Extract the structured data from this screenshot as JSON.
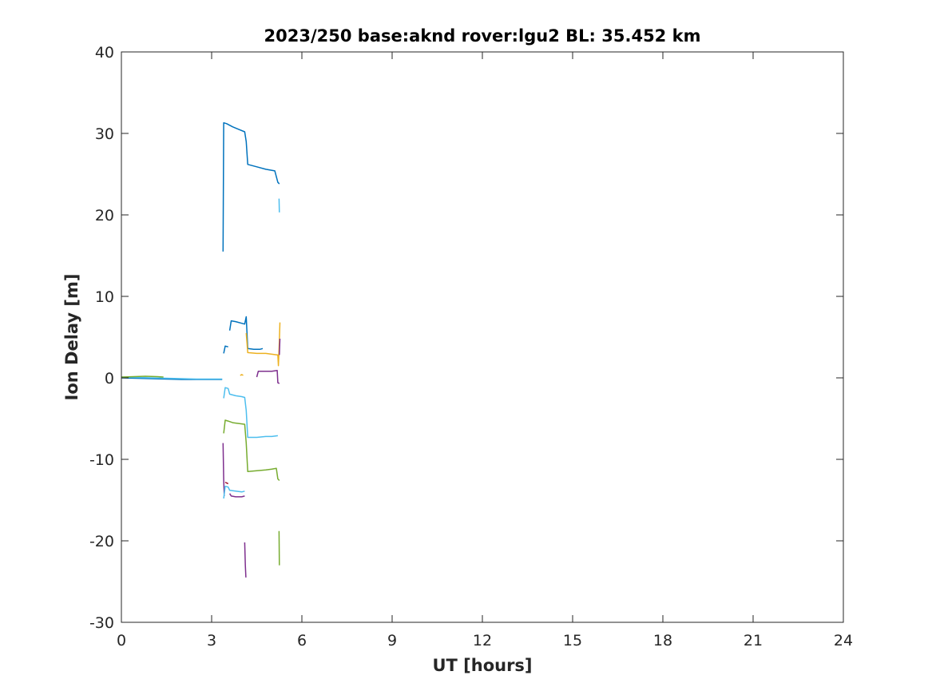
{
  "chart_data": {
    "type": "line",
    "title": "2023/250 base:aknd rover:lgu2 BL: 35.452 km",
    "xlabel": "UT [hours]",
    "ylabel": "Ion Delay [m]",
    "xlim": [
      0,
      24
    ],
    "ylim": [
      -30,
      40
    ],
    "xticks": [
      0,
      3,
      6,
      9,
      12,
      15,
      18,
      21,
      24
    ],
    "yticks": [
      -30,
      -20,
      -10,
      0,
      10,
      20,
      30,
      40
    ],
    "xtick_labels": [
      "0",
      "3",
      "6",
      "9",
      "12",
      "15",
      "18",
      "21",
      "24"
    ],
    "ytick_labels": [
      "-30",
      "-20",
      "-10",
      "0",
      "10",
      "20",
      "30",
      "40"
    ],
    "grid": false,
    "legend": "none",
    "colors": [
      "#0072BD",
      "#D95319",
      "#EDB120",
      "#7E2F8E",
      "#77AC30",
      "#4DBEEE",
      "#A2142F"
    ],
    "series": [
      {
        "color": "#0072BD",
        "x": [
          0.0,
          0.5,
          1.0,
          1.5,
          2.0,
          2.5,
          3.0,
          3.35
        ],
        "y": [
          0.0,
          -0.05,
          -0.1,
          -0.15,
          -0.2,
          -0.2,
          -0.2,
          -0.2
        ]
      },
      {
        "color": "#4DBEEE",
        "x": [
          0.0,
          0.5,
          1.0,
          1.5,
          2.0,
          2.5,
          3.0,
          3.35
        ],
        "y": [
          0.1,
          0.05,
          0.0,
          -0.05,
          -0.1,
          -0.15,
          -0.15,
          -0.15
        ]
      },
      {
        "color": "#77AC30",
        "x": [
          0.0,
          0.4,
          0.8,
          1.2,
          1.4
        ],
        "y": [
          0.1,
          0.15,
          0.2,
          0.15,
          0.1
        ]
      },
      {
        "color": "#0072BD",
        "x": [
          3.38,
          3.4,
          3.5,
          3.7,
          3.9,
          4.1,
          4.15,
          4.2,
          4.5,
          4.8,
          5.1,
          5.2,
          5.25
        ],
        "y": [
          15.5,
          31.3,
          31.2,
          30.8,
          30.5,
          30.2,
          29.0,
          26.2,
          25.9,
          25.6,
          25.4,
          24.0,
          23.8
        ]
      },
      {
        "color": "#4DBEEE",
        "x": [
          5.24,
          5.25
        ],
        "y": [
          22.0,
          20.3
        ]
      },
      {
        "color": "#0072BD",
        "x": [
          3.4,
          3.45,
          3.55
        ],
        "y": [
          3.0,
          3.9,
          3.8
        ]
      },
      {
        "color": "#0072BD",
        "x": [
          3.6,
          3.65,
          3.8,
          4.0,
          4.1,
          4.15,
          4.2,
          4.4,
          4.6,
          4.7
        ],
        "y": [
          5.8,
          7.0,
          6.9,
          6.7,
          6.6,
          7.5,
          3.6,
          3.5,
          3.5,
          3.6
        ]
      },
      {
        "color": "#EDB120",
        "x": [
          4.15,
          4.2,
          4.5,
          4.8,
          5.0,
          5.2,
          5.22,
          5.25,
          5.27
        ],
        "y": [
          5.5,
          3.1,
          3.0,
          3.0,
          2.9,
          2.8,
          1.5,
          4.5,
          6.8
        ]
      },
      {
        "color": "#EDB120",
        "x": [
          3.95,
          4.0,
          4.05
        ],
        "y": [
          0.3,
          0.4,
          0.3
        ]
      },
      {
        "color": "#7E2F8E",
        "x": [
          4.5,
          4.55,
          4.8,
          5.0,
          5.18,
          5.2,
          5.25
        ],
        "y": [
          0.1,
          0.8,
          0.8,
          0.8,
          0.9,
          -0.6,
          -0.7
        ]
      },
      {
        "color": "#7E2F8E",
        "x": [
          5.25,
          5.27
        ],
        "y": [
          2.8,
          4.8
        ]
      },
      {
        "color": "#4DBEEE",
        "x": [
          3.4,
          3.45,
          3.55,
          3.6,
          3.8,
          4.0,
          4.1,
          4.15,
          4.2,
          4.5,
          4.8,
          5.0,
          5.2
        ],
        "y": [
          -2.5,
          -1.2,
          -1.3,
          -2.0,
          -2.2,
          -2.3,
          -2.4,
          -4.0,
          -7.3,
          -7.3,
          -7.2,
          -7.2,
          -7.1
        ]
      },
      {
        "color": "#77AC30",
        "x": [
          3.4,
          3.45,
          3.55,
          3.7,
          3.9,
          4.1,
          4.15,
          4.2,
          4.5,
          4.8,
          5.0,
          5.15,
          5.2,
          5.25
        ],
        "y": [
          -6.8,
          -5.2,
          -5.3,
          -5.5,
          -5.6,
          -5.7,
          -8.0,
          -11.5,
          -11.4,
          -11.3,
          -11.2,
          -11.1,
          -12.4,
          -12.6
        ]
      },
      {
        "color": "#7E2F8E",
        "x": [
          3.38,
          3.4,
          3.42
        ],
        "y": [
          -8.0,
          -12.5,
          -14.5
        ]
      },
      {
        "color": "#4DBEEE",
        "x": [
          3.4,
          3.45,
          3.55,
          3.6,
          3.8,
          4.0,
          4.1
        ],
        "y": [
          -14.8,
          -13.3,
          -13.4,
          -13.8,
          -13.9,
          -14.0,
          -13.9
        ]
      },
      {
        "color": "#A2142F",
        "x": [
          3.45,
          3.5,
          3.55
        ],
        "y": [
          -12.8,
          -12.9,
          -13.0
        ]
      },
      {
        "color": "#7E2F8E",
        "x": [
          3.6,
          3.65,
          3.8,
          4.0,
          4.1
        ],
        "y": [
          -14.2,
          -14.5,
          -14.6,
          -14.6,
          -14.5
        ]
      },
      {
        "color": "#7E2F8E",
        "x": [
          4.1,
          4.12,
          4.14
        ],
        "y": [
          -20.2,
          -23.0,
          -24.5
        ]
      },
      {
        "color": "#77AC30",
        "x": [
          5.24,
          5.25
        ],
        "y": [
          -18.8,
          -23.0
        ]
      }
    ]
  }
}
